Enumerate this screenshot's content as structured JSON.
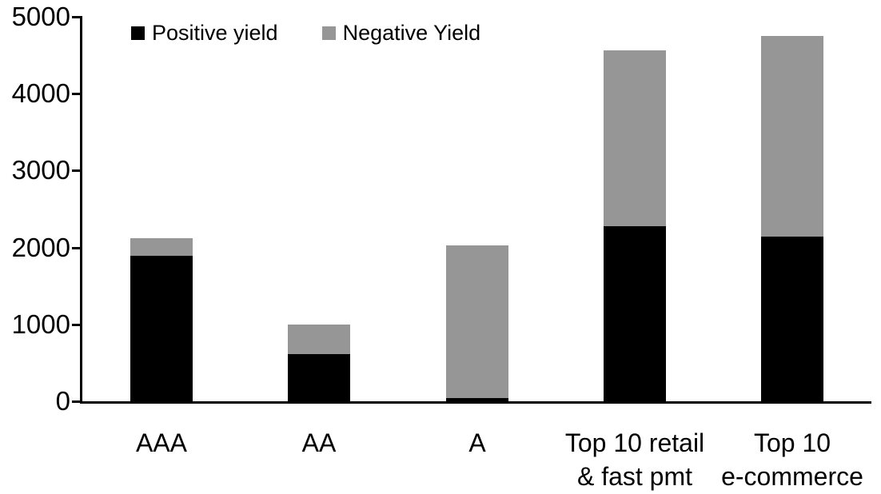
{
  "chart_data": {
    "type": "bar",
    "stacked": true,
    "title": "",
    "categories": [
      {
        "lines": [
          "AAA"
        ]
      },
      {
        "lines": [
          "AA"
        ]
      },
      {
        "lines": [
          "A"
        ]
      },
      {
        "lines": [
          "Top 10 retail",
          "& fast pmt"
        ]
      },
      {
        "lines": [
          "Top 10",
          "e-commerce"
        ]
      }
    ],
    "series": [
      {
        "name": "Positive yield",
        "color": "#000000",
        "values": [
          1890,
          615,
          40,
          2280,
          2140
        ]
      },
      {
        "name": "Negative Yield",
        "color": "#969696",
        "values": [
          230,
          385,
          1990,
          2280,
          2610
        ]
      }
    ],
    "totals": [
      2120,
      1000,
      2030,
      4560,
      4750
    ],
    "ylim": [
      0,
      5000
    ],
    "yticks": [
      0,
      1000,
      2000,
      3000,
      4000,
      5000
    ],
    "xlabel": "",
    "ylabel": "",
    "grid": false,
    "legend_position": "top",
    "axis_color": "#000000",
    "background_color": "#ffffff"
  }
}
